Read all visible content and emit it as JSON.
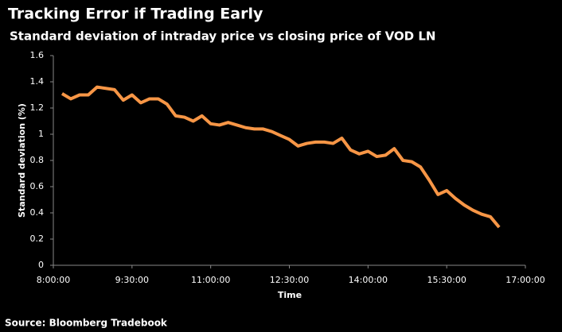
{
  "chart_data": {
    "type": "line",
    "title": "Tracking Error if Trading Early",
    "subtitle": "Standard deviation of intraday price vs closing price of VOD LN",
    "y_label": "Standard deviation    (%)",
    "x_label": "Time",
    "source": "Source: Bloomberg Tradebook",
    "x": [
      490,
      500,
      510,
      520,
      530,
      540,
      550,
      560,
      570,
      580,
      590,
      600,
      610,
      620,
      630,
      640,
      650,
      660,
      670,
      680,
      690,
      700,
      710,
      720,
      730,
      740,
      750,
      760,
      770,
      780,
      790,
      800,
      810,
      820,
      830,
      840,
      850,
      860,
      870,
      880,
      890,
      900,
      910,
      920,
      930,
      940,
      950,
      960,
      970,
      980,
      990
    ],
    "series": [
      {
        "name": "VOD LN",
        "color": "#f79646",
        "values": [
          1.31,
          1.27,
          1.3,
          1.3,
          1.36,
          1.35,
          1.34,
          1.26,
          1.3,
          1.24,
          1.27,
          1.27,
          1.23,
          1.14,
          1.13,
          1.1,
          1.14,
          1.08,
          1.07,
          1.09,
          1.07,
          1.05,
          1.04,
          1.04,
          1.02,
          0.99,
          0.96,
          0.91,
          0.93,
          0.94,
          0.94,
          0.93,
          0.97,
          0.88,
          0.85,
          0.87,
          0.83,
          0.84,
          0.89,
          0.8,
          0.79,
          0.75,
          0.65,
          0.54,
          0.57,
          0.51,
          0.46,
          0.42,
          0.39,
          0.37,
          0.29
        ]
      }
    ],
    "xlim": [
      480,
      1020
    ],
    "xticks": [
      {
        "value": 480,
        "label": "8:00:00"
      },
      {
        "value": 570,
        "label": "9:30:00"
      },
      {
        "value": 660,
        "label": "11:00:00"
      },
      {
        "value": 750,
        "label": "12:30:00"
      },
      {
        "value": 840,
        "label": "14:00:00"
      },
      {
        "value": 930,
        "label": "15:30:00"
      },
      {
        "value": 1020,
        "label": "17:00:00"
      }
    ],
    "ylim": [
      0,
      1.6
    ],
    "yticks": [
      0,
      0.2,
      0.4,
      0.6,
      0.8,
      1,
      1.2,
      1.4,
      1.6
    ],
    "grid": false
  }
}
